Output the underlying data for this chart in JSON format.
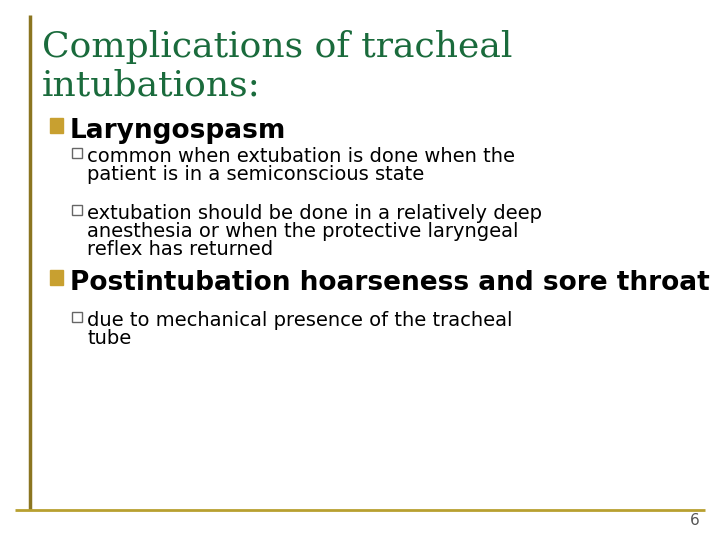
{
  "title_line1": "Complications of tracheal",
  "title_line2": "intubations:",
  "title_color": "#1a6b3c",
  "title_fontsize": 26,
  "background_color": "#ffffff",
  "border_color_left": "#8b7520",
  "border_color_bottom": "#b8a030",
  "bullet1_text": "Laryngospasm",
  "bullet1_marker_color": "#c8a030",
  "bullet1_fontsize": 19,
  "sub_bullet1a_line1": "common when extubation is done when the",
  "sub_bullet1a_line2": "patient is in a semiconscious state",
  "sub_bullet1b_line1": "extubation should be done in a relatively deep",
  "sub_bullet1b_line2": "anesthesia or when the protective laryngeal",
  "sub_bullet1b_line3": "reflex has returned",
  "bullet2_text": "Postintubation hoarseness and sore throat",
  "bullet2_marker_color": "#c8a030",
  "bullet2_fontsize": 19,
  "sub_bullet2a_line1": "due to mechanical presence of the tracheal",
  "sub_bullet2a_line2": "tube",
  "text_color": "#000000",
  "sub_fontsize": 14,
  "checkbox_color": "#666666",
  "page_number": "6",
  "page_number_color": "#555555",
  "page_number_fontsize": 11
}
